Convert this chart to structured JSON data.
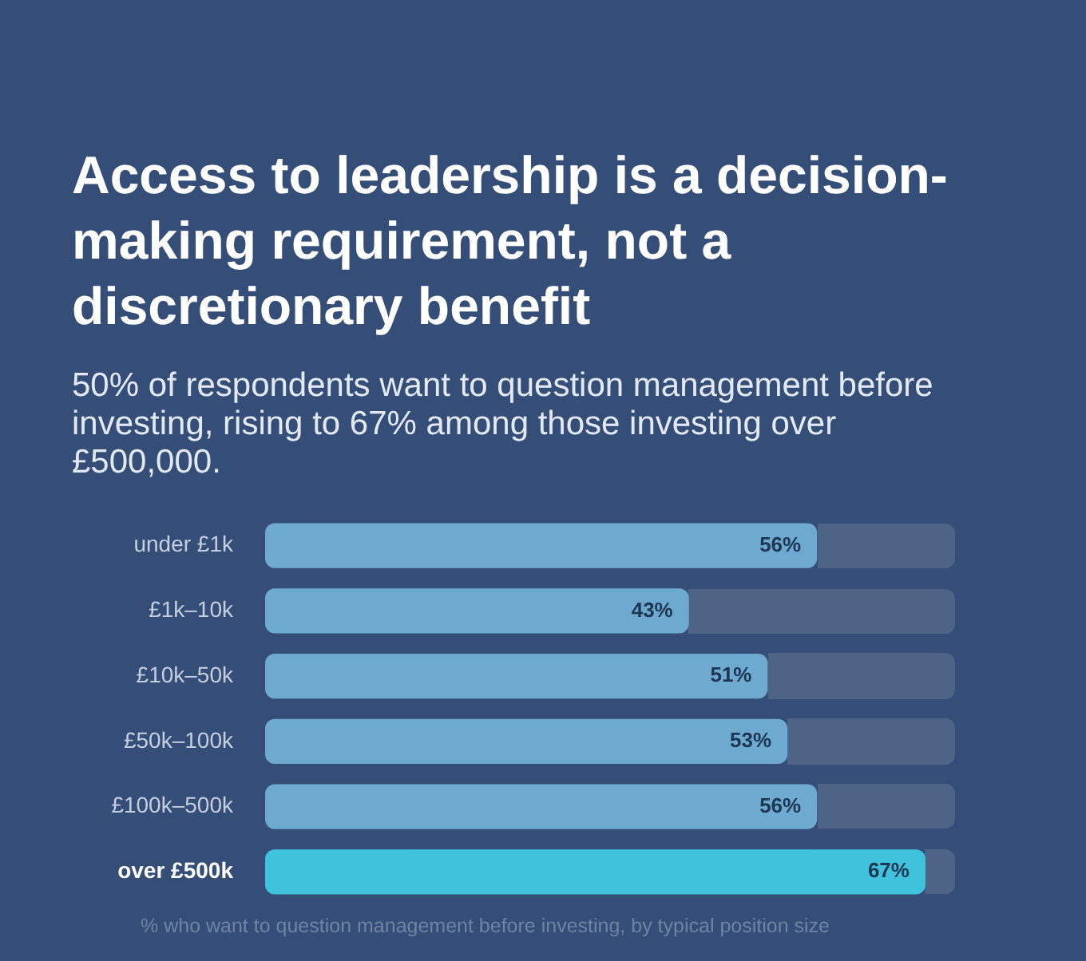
{
  "chart_data": {
    "type": "bar",
    "orientation": "horizontal",
    "title": "Access to leadership is a decision-making requirement, not a discretionary benefit",
    "subtitle": "50% of respondents want to question management before investing, rising to 67% among those investing over £500,000.",
    "categories": [
      "under £1k",
      "£1k–10k",
      "£10k–50k",
      "£50k–100k",
      "£100k–500k",
      "over £500k"
    ],
    "values": [
      56,
      43,
      51,
      53,
      56,
      67
    ],
    "colors": [
      "#6eaad0",
      "#6eaad0",
      "#6eaad0",
      "#6eaad0",
      "#6eaad0",
      "#3fc3dd"
    ],
    "value_labels": [
      "56%",
      "43%",
      "51%",
      "53%",
      "56%",
      "67%"
    ],
    "xlim": [
      0,
      70
    ],
    "tick_labels": "y",
    "legend": false,
    "annotations": [
      "% who want to question management before investing, by typical position size"
    ]
  }
}
